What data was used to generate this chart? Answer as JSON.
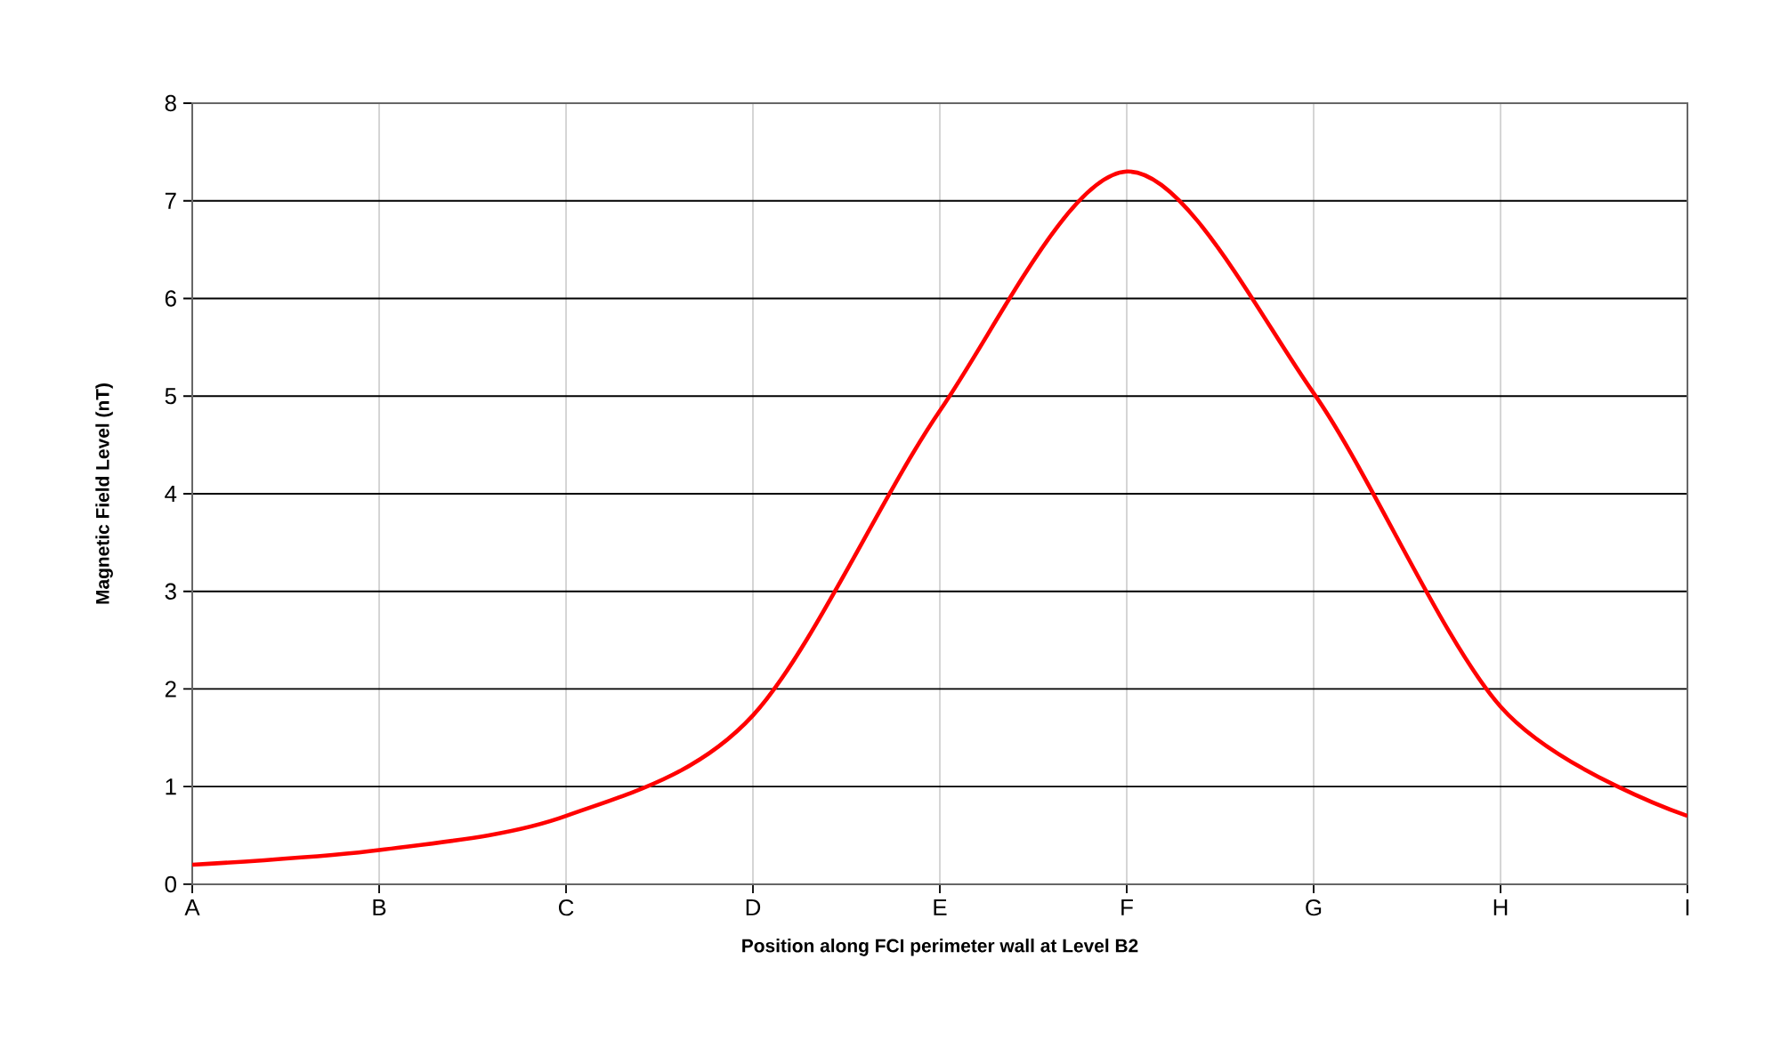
{
  "chart_data": {
    "type": "line",
    "xlabel": "Position along FCI perimeter wall at Level B2",
    "ylabel": "Magnetic Field Level (nT)",
    "categories": [
      "A",
      "B",
      "C",
      "D",
      "E",
      "F",
      "G",
      "H",
      "I"
    ],
    "series": [
      {
        "color": "#ff0000",
        "values": [
          0.2,
          0.35,
          0.7,
          1.73,
          4.85,
          7.3,
          5.03,
          1.82,
          0.7
        ]
      }
    ],
    "ylim": [
      0,
      8
    ],
    "yticks": [
      0,
      1,
      2,
      3,
      4,
      5,
      6,
      7,
      8
    ],
    "grid": true,
    "marker": "none",
    "line_style": "solid"
  }
}
